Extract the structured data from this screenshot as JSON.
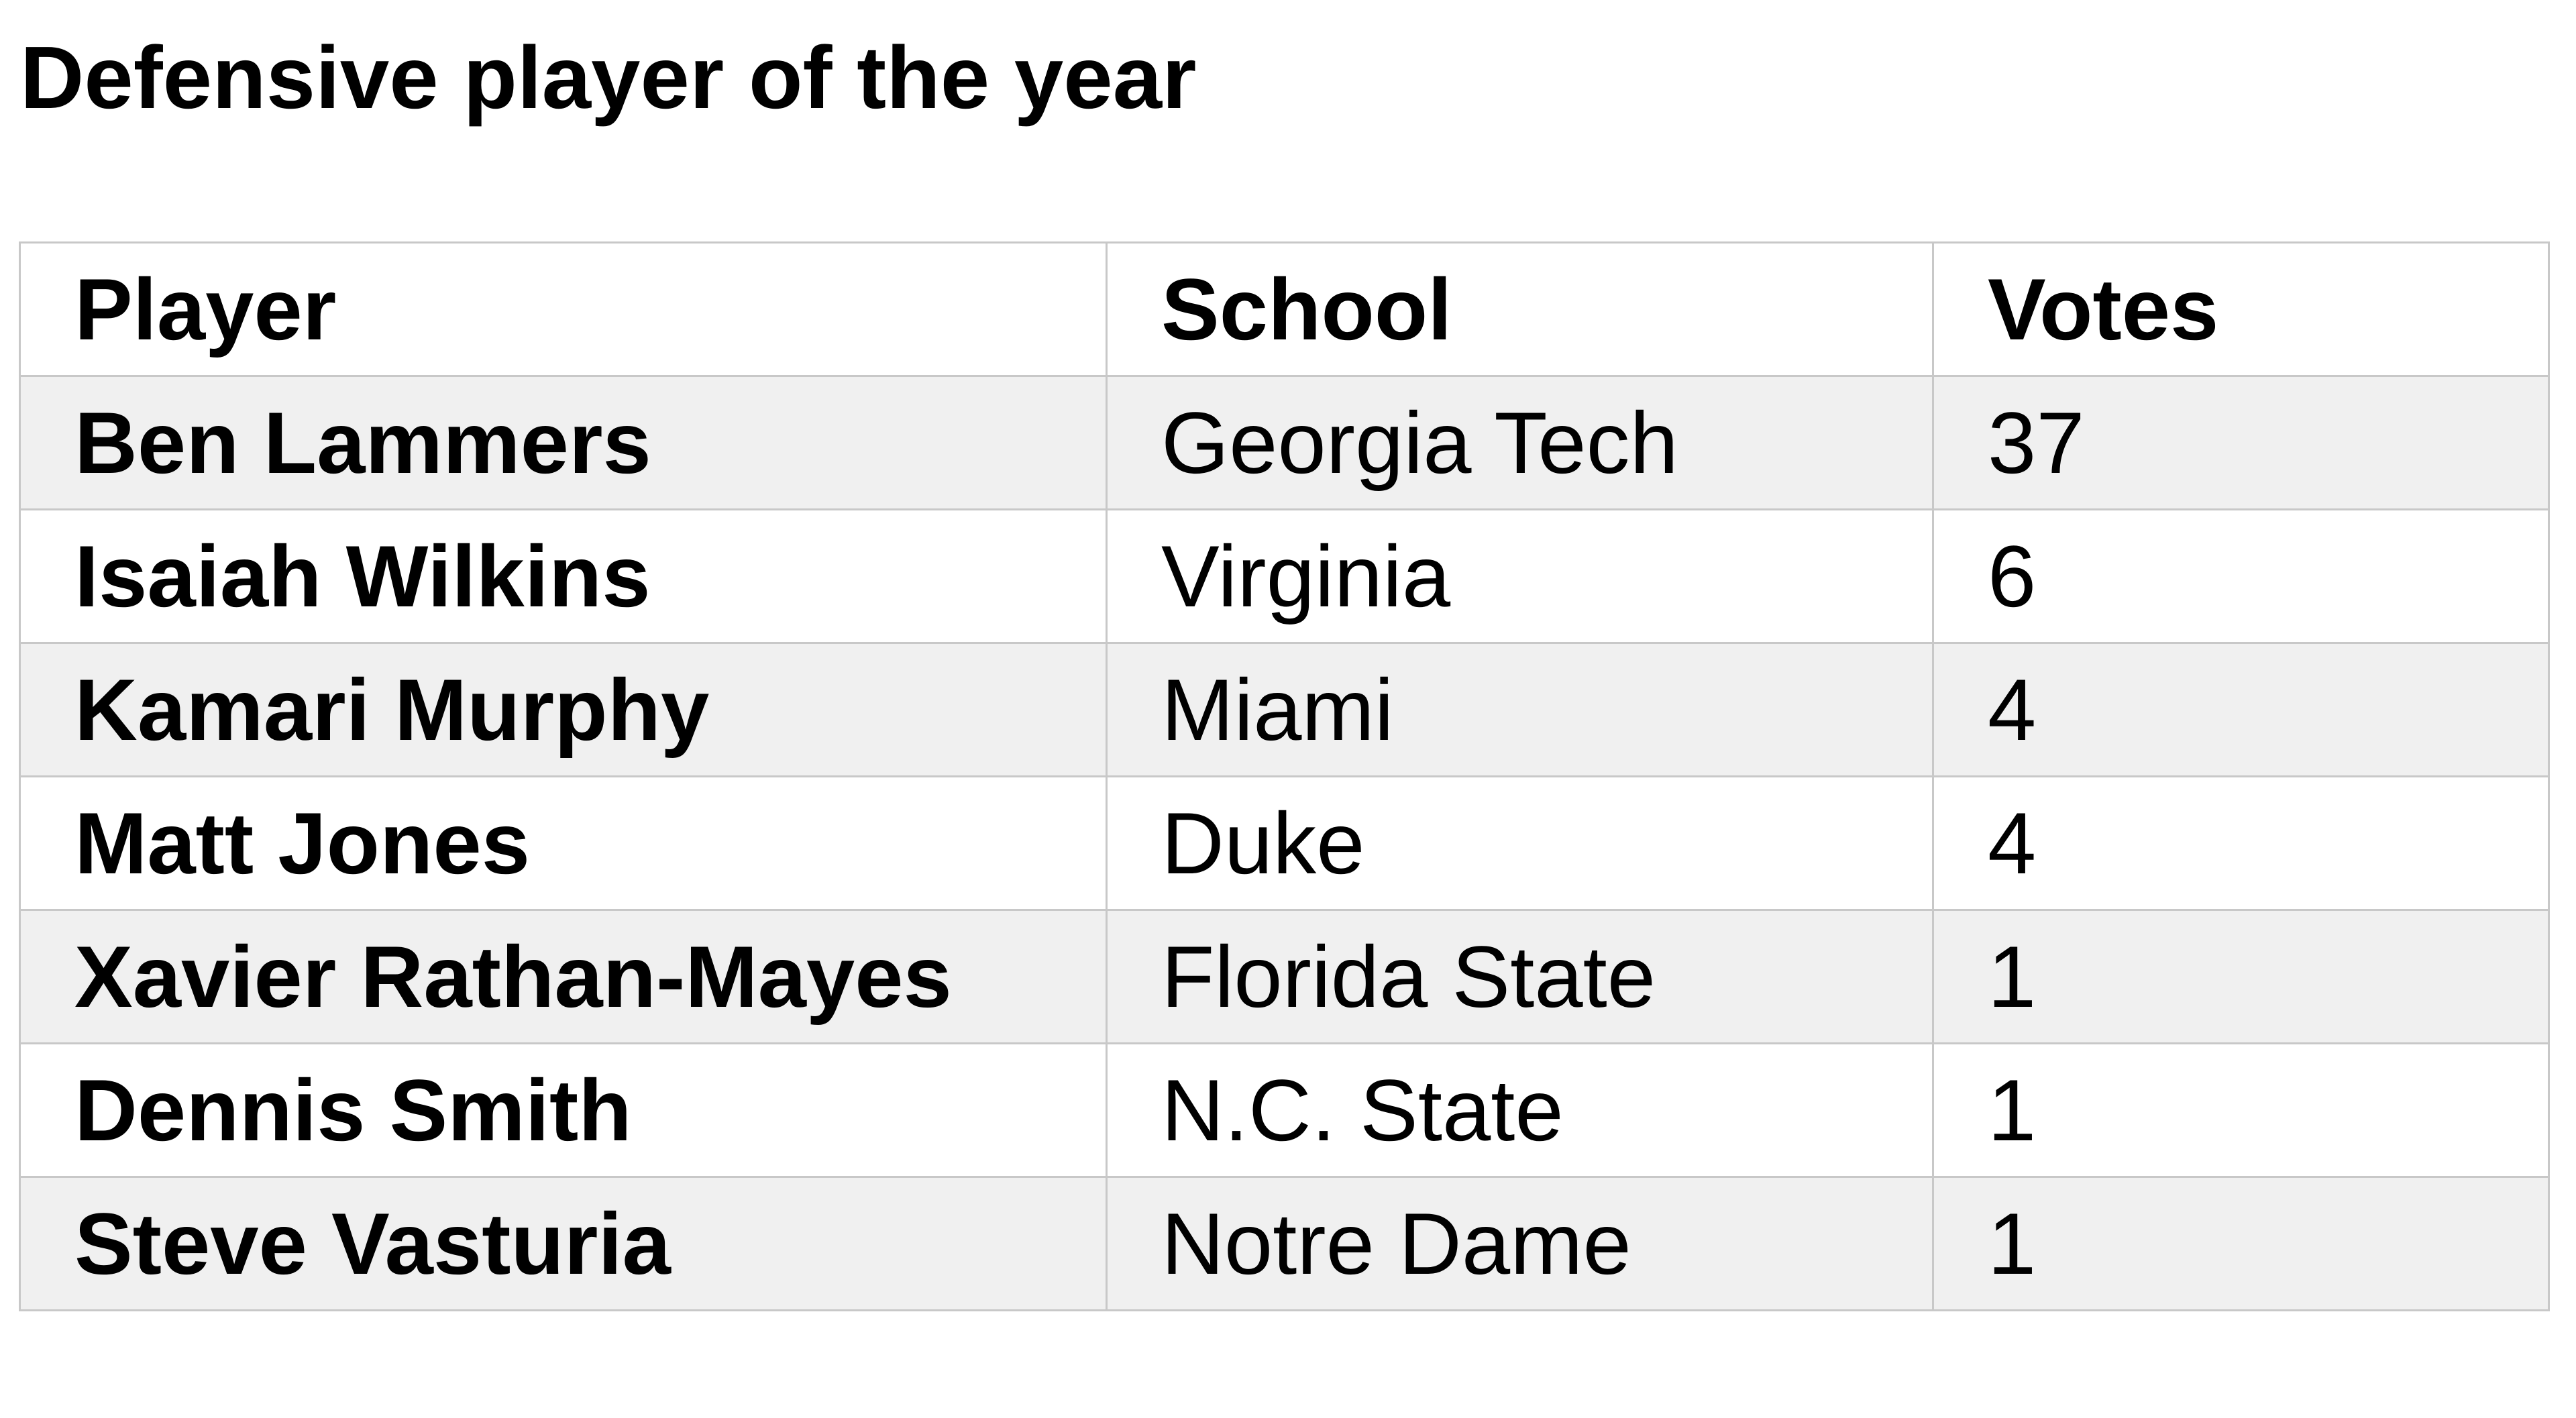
{
  "title": "Defensive player of the year",
  "table": {
    "headers": [
      "Player",
      "School",
      "Votes"
    ],
    "rows": [
      {
        "player": "Ben Lammers",
        "school": "Georgia Tech",
        "votes": "37"
      },
      {
        "player": "Isaiah Wilkins",
        "school": "Virginia",
        "votes": "6"
      },
      {
        "player": "Kamari Murphy",
        "school": "Miami",
        "votes": "4"
      },
      {
        "player": "Matt Jones",
        "school": "Duke",
        "votes": "4"
      },
      {
        "player": "Xavier Rathan-Mayes",
        "school": "Florida State",
        "votes": "1"
      },
      {
        "player": "Dennis Smith",
        "school": "N.C. State",
        "votes": "1"
      },
      {
        "player": "Steve Vasturia",
        "school": "Notre Dame",
        "votes": "1"
      }
    ]
  }
}
